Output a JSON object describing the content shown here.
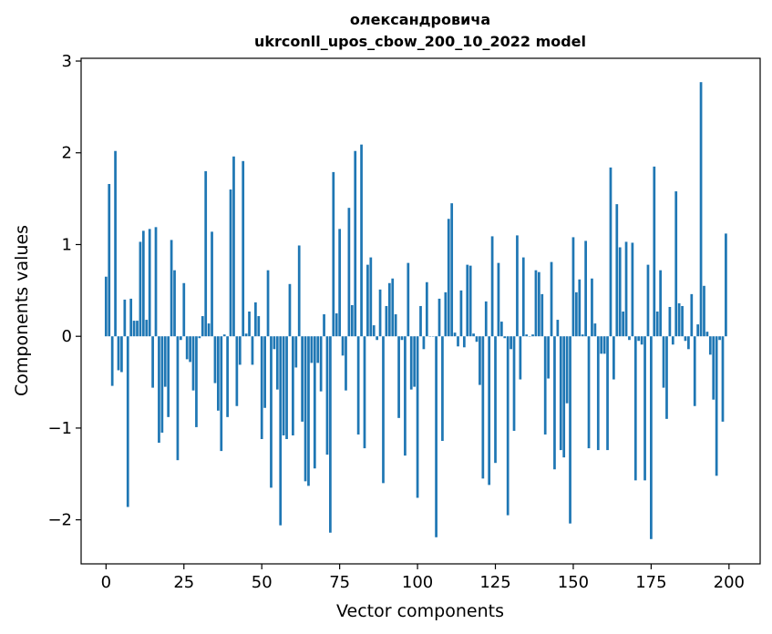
{
  "chart_data": {
    "type": "bar",
    "title": "олександровича",
    "subtitle": "ukrconll_upos_cbow_200_10_2022 model",
    "xlabel": "Vector components",
    "ylabel": "Components values",
    "xlim": [
      -8,
      210
    ],
    "ylim": [
      -2.48,
      3.03
    ],
    "xticks": [
      0,
      25,
      50,
      75,
      100,
      125,
      150,
      175,
      200
    ],
    "xtick_labels": [
      "0",
      "25",
      "50",
      "75",
      "100",
      "125",
      "150",
      "175",
      "200"
    ],
    "yticks": [
      -2,
      -1,
      0,
      1,
      2,
      3
    ],
    "ytick_labels": [
      "−2",
      "−1",
      "0",
      "1",
      "2",
      "3"
    ],
    "grid": false,
    "bar_color": "#1f77b4",
    "x": [
      0,
      1,
      2,
      3,
      4,
      5,
      6,
      7,
      8,
      9,
      10,
      11,
      12,
      13,
      14,
      15,
      16,
      17,
      18,
      19,
      20,
      21,
      22,
      23,
      24,
      25,
      26,
      27,
      28,
      29,
      30,
      31,
      32,
      33,
      34,
      35,
      36,
      37,
      38,
      39,
      40,
      41,
      42,
      43,
      44,
      45,
      46,
      47,
      48,
      49,
      50,
      51,
      52,
      53,
      54,
      55,
      56,
      57,
      58,
      59,
      60,
      61,
      62,
      63,
      64,
      65,
      66,
      67,
      68,
      69,
      70,
      71,
      72,
      73,
      74,
      75,
      76,
      77,
      78,
      79,
      80,
      81,
      82,
      83,
      84,
      85,
      86,
      87,
      88,
      89,
      90,
      91,
      92,
      93,
      94,
      95,
      96,
      97,
      98,
      99,
      100,
      101,
      102,
      103,
      104,
      105,
      106,
      107,
      108,
      109,
      110,
      111,
      112,
      113,
      114,
      115,
      116,
      117,
      118,
      119,
      120,
      121,
      122,
      123,
      124,
      125,
      126,
      127,
      128,
      129,
      130,
      131,
      132,
      133,
      134,
      135,
      136,
      137,
      138,
      139,
      140,
      141,
      142,
      143,
      144,
      145,
      146,
      147,
      148,
      149,
      150,
      151,
      152,
      153,
      154,
      155,
      156,
      157,
      158,
      159,
      160,
      161,
      162,
      163,
      164,
      165,
      166,
      167,
      168,
      169,
      170,
      171,
      172,
      173,
      174,
      175,
      176,
      177,
      178,
      179,
      180,
      181,
      182,
      183,
      184,
      185,
      186,
      187,
      188,
      189,
      190,
      191,
      192,
      193,
      194,
      195,
      196,
      197,
      198,
      199
    ],
    "values": [
      0.65,
      1.66,
      -0.54,
      2.02,
      -0.37,
      -0.39,
      0.4,
      -1.86,
      0.41,
      0.17,
      0.17,
      1.03,
      1.15,
      0.18,
      1.17,
      -0.56,
      1.19,
      -1.16,
      -1.05,
      -0.55,
      -0.88,
      1.05,
      0.72,
      -1.35,
      -0.04,
      0.58,
      -0.25,
      -0.28,
      -0.59,
      -0.99,
      -0.02,
      0.22,
      1.8,
      0.14,
      1.14,
      -0.51,
      -0.81,
      -1.25,
      0.02,
      -0.88,
      1.6,
      1.96,
      -0.76,
      -0.31,
      1.91,
      0.03,
      0.27,
      -0.31,
      0.37,
      0.22,
      -1.12,
      -0.78,
      0.72,
      -1.65,
      -0.14,
      -0.58,
      -2.06,
      -1.08,
      -1.12,
      0.57,
      -1.08,
      -0.34,
      0.99,
      -0.93,
      -1.58,
      -1.63,
      -0.29,
      -1.44,
      -0.29,
      -0.6,
      0.24,
      -1.29,
      -2.14,
      1.79,
      0.25,
      1.17,
      -0.21,
      -0.59,
      1.4,
      0.34,
      2.02,
      -1.07,
      2.09,
      -1.22,
      0.78,
      0.86,
      0.12,
      -0.04,
      0.51,
      -1.6,
      0.33,
      0.58,
      0.63,
      0.24,
      -0.89,
      -0.04,
      -1.3,
      0.8,
      -0.58,
      -0.55,
      -1.76,
      0.33,
      -0.14,
      0.59,
      0.0,
      0.0,
      -2.19,
      0.41,
      -1.14,
      0.48,
      1.28,
      1.45,
      0.04,
      -0.11,
      0.5,
      -0.12,
      0.78,
      0.77,
      0.03,
      -0.06,
      -0.53,
      -1.55,
      0.38,
      -1.62,
      1.09,
      -1.38,
      0.8,
      0.16,
      -0.02,
      -1.95,
      -0.14,
      -1.03,
      1.1,
      -0.47,
      0.86,
      0.02,
      0.0,
      0.02,
      0.72,
      0.7,
      0.46,
      -1.07,
      -0.46,
      0.81,
      -1.45,
      0.18,
      -1.24,
      -1.32,
      -0.73,
      -2.04,
      1.08,
      0.48,
      0.62,
      0.02,
      1.04,
      -1.22,
      0.63,
      0.14,
      -1.24,
      -0.19,
      -0.19,
      -1.24,
      1.84,
      -0.47,
      1.44,
      0.97,
      0.27,
      1.03,
      -0.04,
      1.02,
      -1.57,
      -0.05,
      -0.09,
      -1.57,
      0.78,
      -2.21,
      1.85,
      0.27,
      0.72,
      -0.56,
      -0.9,
      0.32,
      -0.09,
      1.58,
      0.36,
      0.33,
      -0.05,
      -0.14,
      0.46,
      -0.76,
      0.13,
      2.77,
      0.55,
      0.05,
      -0.2,
      -0.69,
      -1.52,
      -0.04,
      -0.93,
      1.12
    ]
  }
}
